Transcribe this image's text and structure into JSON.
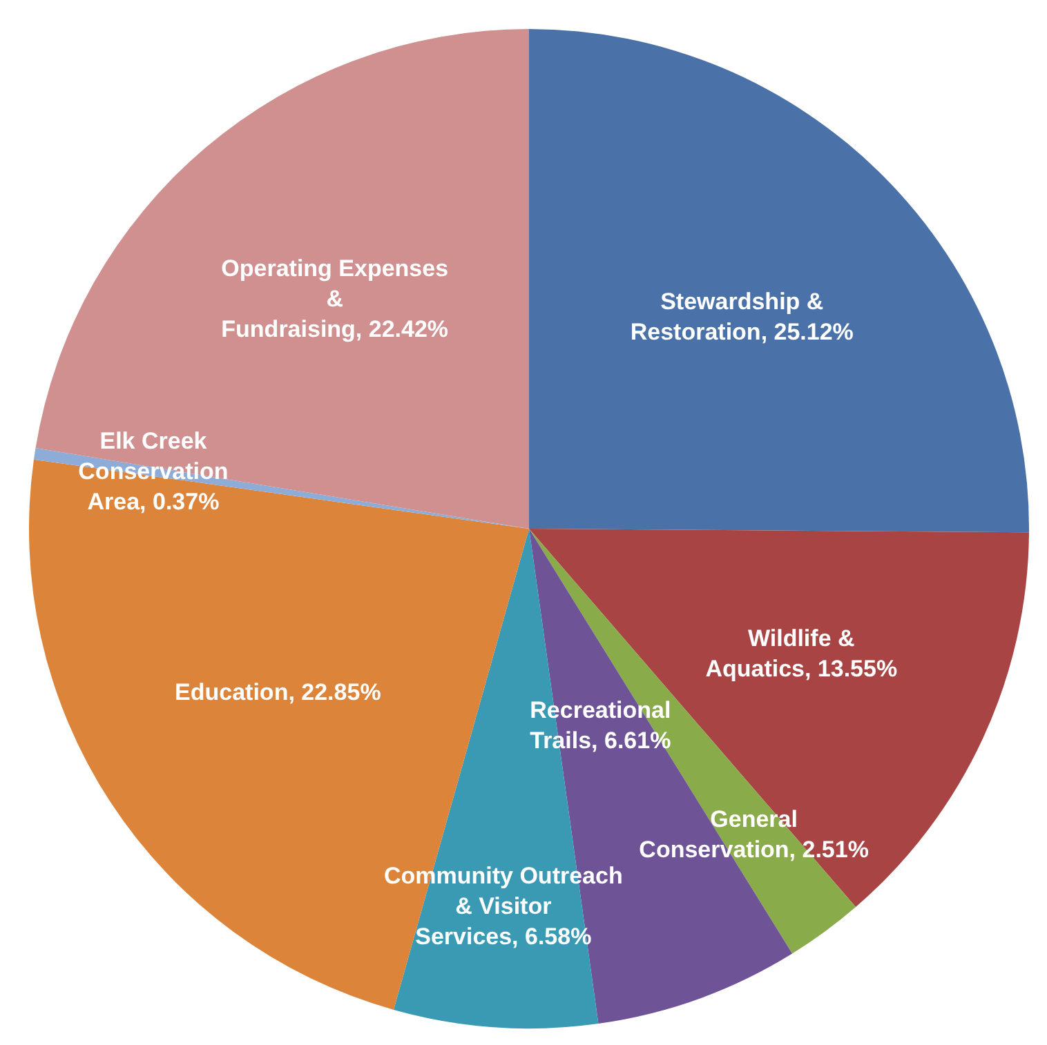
{
  "chart_data": {
    "type": "pie",
    "categories": [
      "Stewardship & Restoration",
      "Wildlife & Aquatics",
      "General Conservation",
      "Recreational Trails",
      "Community Outreach & Visitor Services",
      "Education",
      "Elk Creek Conservation Area",
      "Operating Expenses & Fundraising"
    ],
    "values": [
      25.12,
      13.55,
      2.51,
      6.61,
      6.58,
      22.85,
      0.37,
      22.42
    ],
    "value_labels": [
      "25.12%",
      "13.55%",
      "2.51%",
      "6.61%",
      "6.58%",
      "22.85%",
      "0.37%",
      "22.42%"
    ],
    "colors": [
      "#4a72a8",
      "#a84444",
      "#8aab4a",
      "#6e5496",
      "#3a9ab4",
      "#dc843a",
      "#8eacd8",
      "#d09090"
    ]
  }
}
